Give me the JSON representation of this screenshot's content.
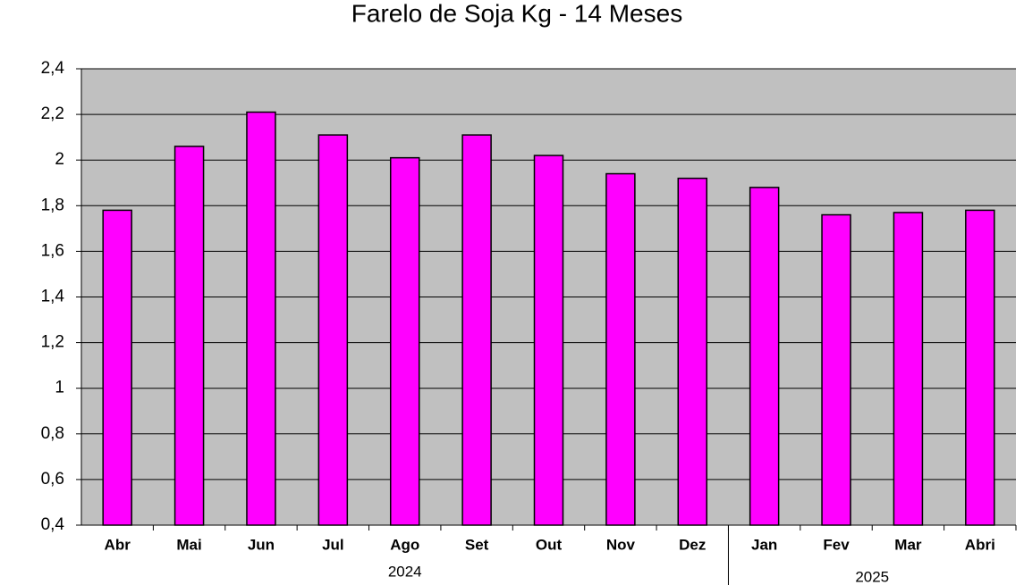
{
  "chart_data": {
    "type": "bar",
    "title": "Farelo de Soja Kg - 14 Meses",
    "categories": [
      "Abr",
      "Mai",
      "Jun",
      "Jul",
      "Ago",
      "Set",
      "Out",
      "Nov",
      "Dez",
      "Jan",
      "Fev",
      "Mar",
      "Abri"
    ],
    "values": [
      1.78,
      2.06,
      2.21,
      2.11,
      2.01,
      2.11,
      2.02,
      1.94,
      1.92,
      1.88,
      1.76,
      1.77,
      1.78
    ],
    "color": "#ff00ff",
    "groups": [
      {
        "label": "2024",
        "count": 9
      },
      {
        "label": "2025",
        "count": 4
      }
    ],
    "ylim": [
      0.4,
      2.4
    ],
    "yticks": [
      {
        "value": 0.4,
        "label": "0,4"
      },
      {
        "value": 0.6,
        "label": "0,6"
      },
      {
        "value": 0.8,
        "label": "0,8"
      },
      1,
      {
        "value": 1.2,
        "label": "1,2"
      },
      {
        "value": 1.4,
        "label": "1,4"
      },
      {
        "value": 1.6,
        "label": "1,6"
      },
      {
        "value": 1.8,
        "label": "1,8"
      },
      2,
      {
        "value": 2.2,
        "label": "2,2"
      },
      {
        "value": 2.4,
        "label": "2,4"
      }
    ],
    "grid": true
  }
}
